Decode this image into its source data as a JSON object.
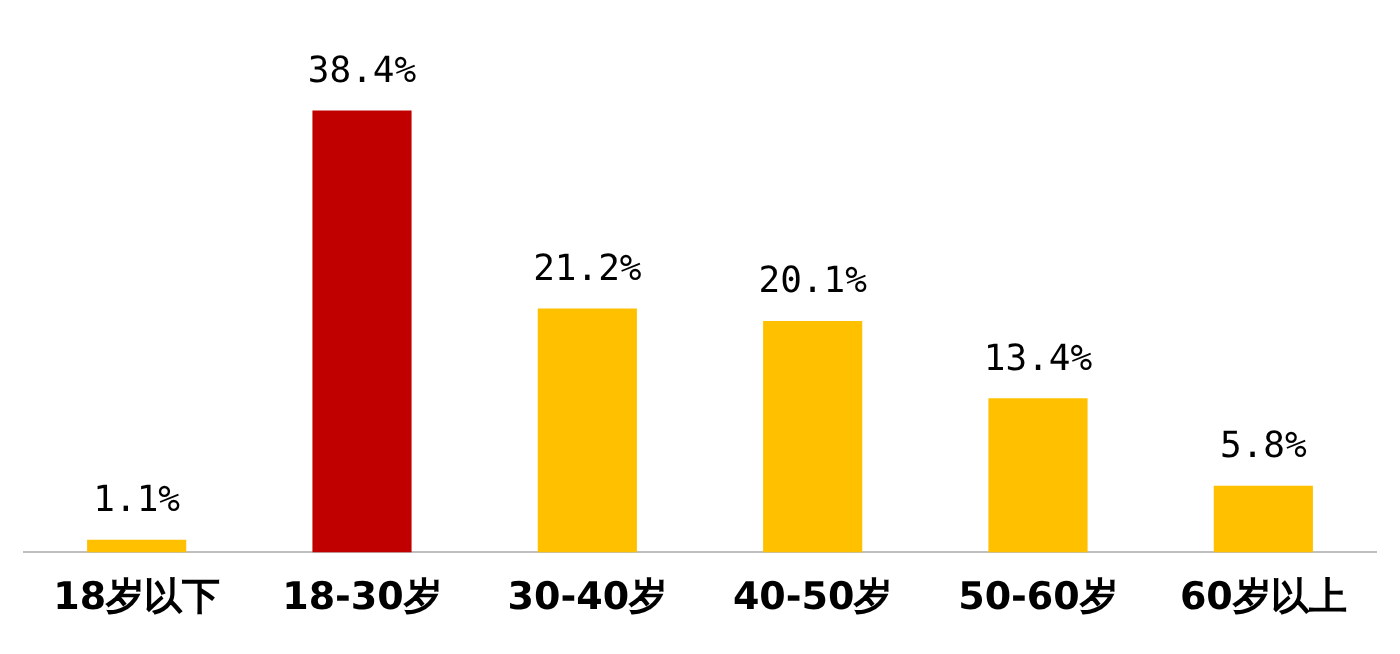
{
  "chart_data": {
    "type": "bar",
    "categories": [
      "18岁以下",
      "18-30岁",
      "30-40岁",
      "40-50岁",
      "50-60岁",
      "60岁以上"
    ],
    "values": [
      1.1,
      38.4,
      21.2,
      20.1,
      13.4,
      5.8
    ],
    "colors": [
      "#ffc000",
      "#c00000",
      "#ffc000",
      "#ffc000",
      "#ffc000",
      "#ffc000"
    ],
    "value_labels": [
      "1.1%",
      "38.4%",
      "21.2%",
      "20.1%",
      "13.4%",
      "5.8%"
    ],
    "grid": false,
    "legend": false
  }
}
